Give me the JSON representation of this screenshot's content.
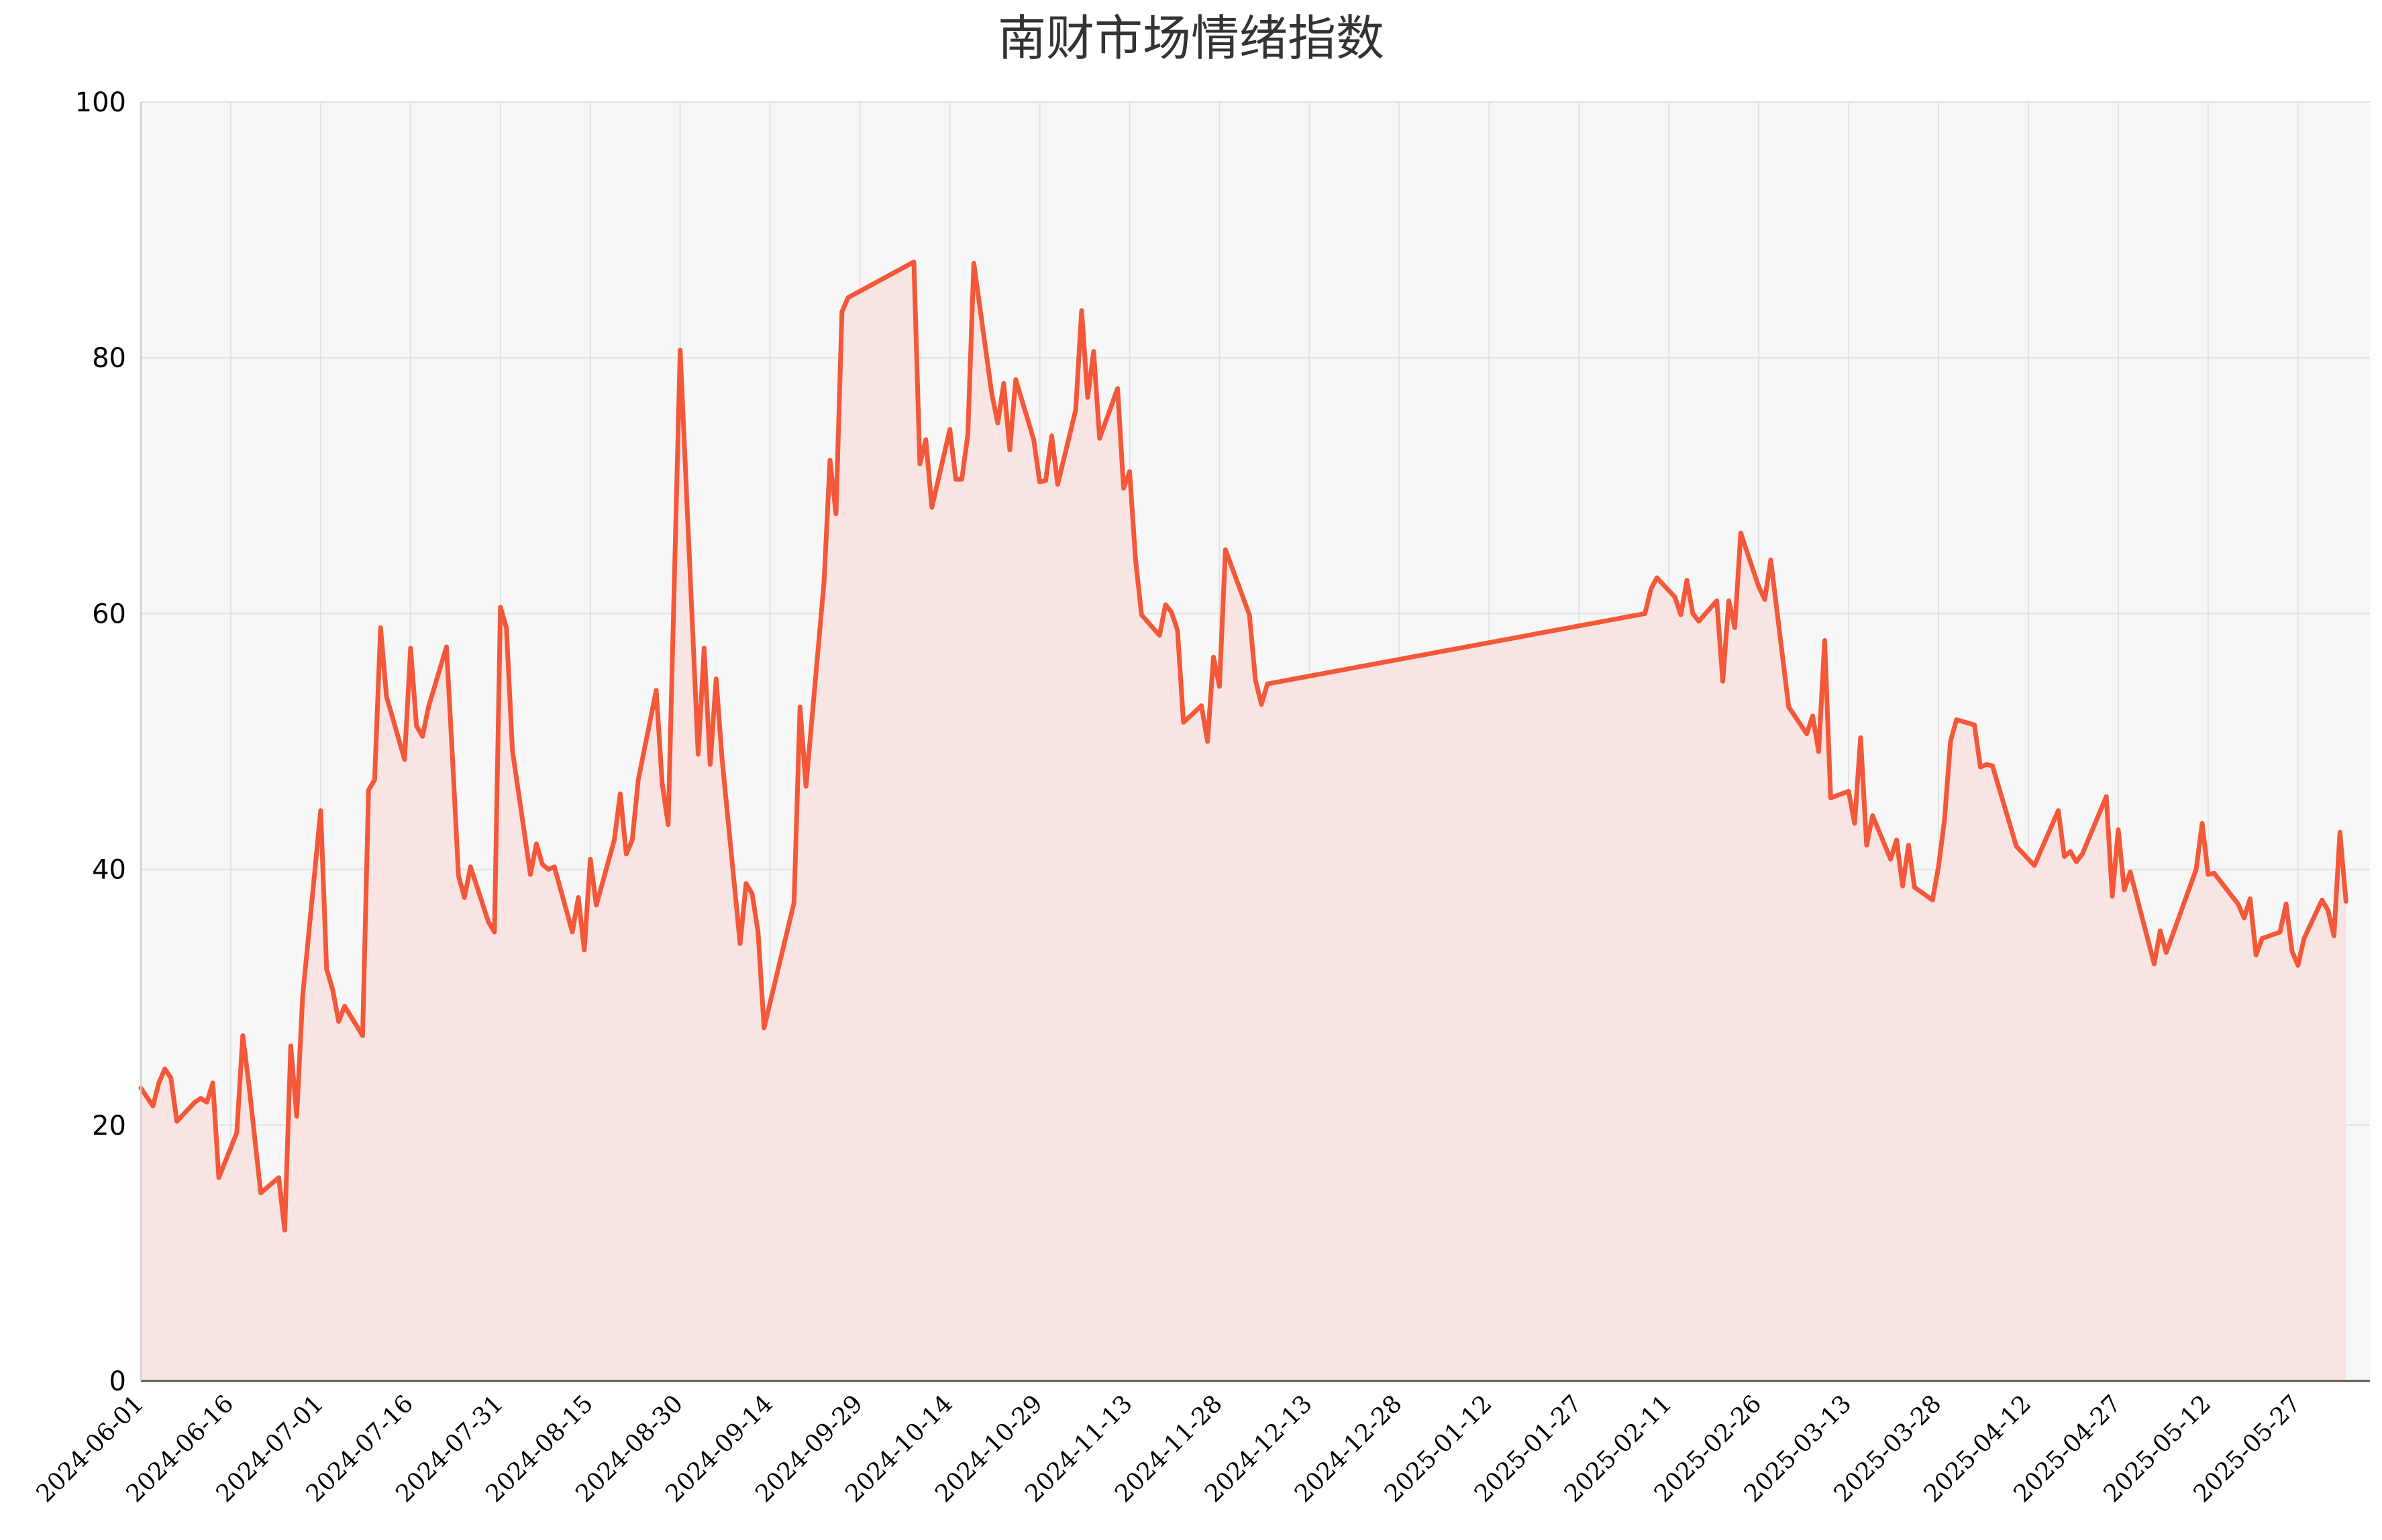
{
  "chart_data": {
    "type": "area",
    "title": "南财市场情绪指数",
    "xlabel": "",
    "ylabel": "",
    "ylim": [
      0,
      100
    ],
    "yticks": [
      "0",
      "20",
      "40",
      "60",
      "80",
      "100"
    ],
    "xlim": [
      "2024-06-01",
      "2025-06-08"
    ],
    "xticks": [
      "2024-06-01",
      "2024-06-16",
      "2024-07-01",
      "2024-07-16",
      "2024-07-31",
      "2024-08-15",
      "2024-08-30",
      "2024-09-14",
      "2024-09-29",
      "2024-10-14",
      "2024-10-29",
      "2024-11-13",
      "2024-11-28",
      "2024-12-13",
      "2024-12-28",
      "2025-01-12",
      "2025-01-27",
      "2025-02-11",
      "2025-02-26",
      "2025-03-13",
      "2025-03-28",
      "2025-04-12",
      "2025-04-27",
      "2025-05-12",
      "2025-05-27"
    ],
    "grid": true,
    "colors": {
      "line": "#f4583a",
      "fill": "#f8e4e2",
      "plot_bg": "#f7f7f7",
      "grid": "#e2e2e2"
    },
    "series": [
      {
        "points": [
          [
            "2024-06-01",
            22.9
          ],
          [
            "2024-06-02",
            22.2
          ],
          [
            "2024-06-03",
            21.5
          ],
          [
            "2024-06-04",
            23.3
          ],
          [
            "2024-06-05",
            24.4
          ],
          [
            "2024-06-06",
            23.7
          ],
          [
            "2024-06-07",
            20.3
          ],
          [
            "2024-06-10",
            21.8
          ],
          [
            "2024-06-11",
            22.1
          ],
          [
            "2024-06-12",
            21.8
          ],
          [
            "2024-06-13",
            23.3
          ],
          [
            "2024-06-14",
            15.9
          ],
          [
            "2024-06-17",
            19.4
          ],
          [
            "2024-06-18",
            27.0
          ],
          [
            "2024-06-19",
            23.3
          ],
          [
            "2024-06-21",
            14.7
          ],
          [
            "2024-06-24",
            15.9
          ],
          [
            "2024-06-25",
            11.8
          ],
          [
            "2024-06-26",
            26.2
          ],
          [
            "2024-06-27",
            20.7
          ],
          [
            "2024-06-28",
            30.1
          ],
          [
            "2024-07-01",
            44.6
          ],
          [
            "2024-07-02",
            32.2
          ],
          [
            "2024-07-03",
            30.6
          ],
          [
            "2024-07-04",
            28.1
          ],
          [
            "2024-07-05",
            29.3
          ],
          [
            "2024-07-08",
            27.0
          ],
          [
            "2024-07-09",
            46.2
          ],
          [
            "2024-07-10",
            47.0
          ],
          [
            "2024-07-11",
            58.9
          ],
          [
            "2024-07-12",
            53.5
          ],
          [
            "2024-07-15",
            48.6
          ],
          [
            "2024-07-16",
            57.3
          ],
          [
            "2024-07-17",
            51.2
          ],
          [
            "2024-07-18",
            50.4
          ],
          [
            "2024-07-19",
            52.7
          ],
          [
            "2024-07-22",
            57.4
          ],
          [
            "2024-07-23",
            48.7
          ],
          [
            "2024-07-24",
            39.5
          ],
          [
            "2024-07-25",
            37.8
          ],
          [
            "2024-07-26",
            40.2
          ],
          [
            "2024-07-29",
            35.9
          ],
          [
            "2024-07-30",
            35.1
          ],
          [
            "2024-07-31",
            60.5
          ],
          [
            "2024-08-01",
            58.9
          ],
          [
            "2024-08-02",
            49.3
          ],
          [
            "2024-08-05",
            39.6
          ],
          [
            "2024-08-06",
            42.0
          ],
          [
            "2024-08-07",
            40.4
          ],
          [
            "2024-08-08",
            40.0
          ],
          [
            "2024-08-09",
            40.2
          ],
          [
            "2024-08-12",
            35.1
          ],
          [
            "2024-08-13",
            37.8
          ],
          [
            "2024-08-14",
            33.7
          ],
          [
            "2024-08-15",
            40.8
          ],
          [
            "2024-08-16",
            37.2
          ],
          [
            "2024-08-19",
            42.3
          ],
          [
            "2024-08-20",
            45.9
          ],
          [
            "2024-08-21",
            41.2
          ],
          [
            "2024-08-22",
            42.3
          ],
          [
            "2024-08-23",
            47.0
          ],
          [
            "2024-08-26",
            54.0
          ],
          [
            "2024-08-27",
            46.7
          ],
          [
            "2024-08-28",
            43.5
          ],
          [
            "2024-08-30",
            80.6
          ],
          [
            "2024-09-02",
            49.0
          ],
          [
            "2024-09-03",
            57.3
          ],
          [
            "2024-09-04",
            48.2
          ],
          [
            "2024-09-05",
            54.9
          ],
          [
            "2024-09-06",
            48.6
          ],
          [
            "2024-09-09",
            34.2
          ],
          [
            "2024-09-10",
            38.9
          ],
          [
            "2024-09-11",
            38.1
          ],
          [
            "2024-09-12",
            35.1
          ],
          [
            "2024-09-13",
            27.6
          ],
          [
            "2024-09-18",
            37.4
          ],
          [
            "2024-09-19",
            52.7
          ],
          [
            "2024-09-20",
            46.5
          ],
          [
            "2024-09-23",
            62.4
          ],
          [
            "2024-09-24",
            72.0
          ],
          [
            "2024-09-25",
            67.8
          ],
          [
            "2024-09-26",
            83.6
          ],
          [
            "2024-09-27",
            84.7
          ],
          [
            "2024-10-08",
            87.5
          ],
          [
            "2024-10-09",
            71.7
          ],
          [
            "2024-10-10",
            73.6
          ],
          [
            "2024-10-11",
            68.3
          ],
          [
            "2024-10-14",
            74.4
          ],
          [
            "2024-10-15",
            70.5
          ],
          [
            "2024-10-16",
            70.5
          ],
          [
            "2024-10-17",
            74.0
          ],
          [
            "2024-10-18",
            87.4
          ],
          [
            "2024-10-21",
            77.2
          ],
          [
            "2024-10-22",
            74.9
          ],
          [
            "2024-10-23",
            78.0
          ],
          [
            "2024-10-24",
            72.8
          ],
          [
            "2024-10-25",
            78.3
          ],
          [
            "2024-10-28",
            73.6
          ],
          [
            "2024-10-29",
            70.3
          ],
          [
            "2024-10-30",
            70.4
          ],
          [
            "2024-10-31",
            73.9
          ],
          [
            "2024-11-01",
            70.1
          ],
          [
            "2024-11-04",
            75.9
          ],
          [
            "2024-11-05",
            83.7
          ],
          [
            "2024-11-06",
            76.9
          ],
          [
            "2024-11-07",
            80.5
          ],
          [
            "2024-11-08",
            73.7
          ],
          [
            "2024-11-11",
            77.6
          ],
          [
            "2024-11-12",
            69.8
          ],
          [
            "2024-11-13",
            71.1
          ],
          [
            "2024-11-14",
            64.2
          ],
          [
            "2024-11-15",
            59.9
          ],
          [
            "2024-11-18",
            58.3
          ],
          [
            "2024-11-19",
            60.7
          ],
          [
            "2024-11-20",
            60.1
          ],
          [
            "2024-11-21",
            58.7
          ],
          [
            "2024-11-22",
            51.5
          ],
          [
            "2024-11-25",
            52.8
          ],
          [
            "2024-11-26",
            50.0
          ],
          [
            "2024-11-27",
            56.6
          ],
          [
            "2024-11-28",
            54.3
          ],
          [
            "2024-11-29",
            65.0
          ],
          [
            "2024-12-03",
            59.9
          ],
          [
            "2024-12-04",
            54.8
          ],
          [
            "2024-12-05",
            52.9
          ],
          [
            "2024-12-06",
            54.5
          ],
          [
            "2025-02-07",
            60.0
          ],
          [
            "2025-02-08",
            61.9
          ],
          [
            "2025-02-09",
            62.8
          ],
          [
            "2025-02-12",
            61.3
          ],
          [
            "2025-02-13",
            59.9
          ],
          [
            "2025-02-14",
            62.6
          ],
          [
            "2025-02-15",
            60.0
          ],
          [
            "2025-02-16",
            59.4
          ],
          [
            "2025-02-19",
            61.0
          ],
          [
            "2025-02-20",
            54.7
          ],
          [
            "2025-02-21",
            61.0
          ],
          [
            "2025-02-22",
            58.9
          ],
          [
            "2025-02-23",
            66.3
          ],
          [
            "2025-02-26",
            62.1
          ],
          [
            "2025-02-27",
            61.1
          ],
          [
            "2025-02-28",
            64.2
          ],
          [
            "2025-03-03",
            52.7
          ],
          [
            "2025-03-06",
            50.6
          ],
          [
            "2025-03-07",
            52.0
          ],
          [
            "2025-03-08",
            49.2
          ],
          [
            "2025-03-09",
            57.9
          ],
          [
            "2025-03-10",
            45.6
          ],
          [
            "2025-03-13",
            46.1
          ],
          [
            "2025-03-14",
            43.6
          ],
          [
            "2025-03-15",
            50.3
          ],
          [
            "2025-03-16",
            41.9
          ],
          [
            "2025-03-17",
            44.2
          ],
          [
            "2025-03-20",
            40.8
          ],
          [
            "2025-03-21",
            42.3
          ],
          [
            "2025-03-22",
            38.7
          ],
          [
            "2025-03-23",
            41.9
          ],
          [
            "2025-03-24",
            38.6
          ],
          [
            "2025-03-27",
            37.6
          ],
          [
            "2025-03-28",
            40.2
          ],
          [
            "2025-03-29",
            43.9
          ],
          [
            "2025-03-30",
            50.0
          ],
          [
            "2025-03-31",
            51.7
          ],
          [
            "2025-04-03",
            51.3
          ],
          [
            "2025-04-04",
            48.0
          ],
          [
            "2025-04-05",
            48.2
          ],
          [
            "2025-04-06",
            48.1
          ],
          [
            "2025-04-10",
            41.8
          ],
          [
            "2025-04-13",
            40.3
          ],
          [
            "2025-04-17",
            44.6
          ],
          [
            "2025-04-18",
            41.0
          ],
          [
            "2025-04-19",
            41.4
          ],
          [
            "2025-04-20",
            40.6
          ],
          [
            "2025-04-21",
            41.2
          ],
          [
            "2025-04-25",
            45.7
          ],
          [
            "2025-04-26",
            37.9
          ],
          [
            "2025-04-27",
            43.1
          ],
          [
            "2025-04-28",
            38.4
          ],
          [
            "2025-04-29",
            39.8
          ],
          [
            "2025-05-03",
            32.6
          ],
          [
            "2025-05-04",
            35.2
          ],
          [
            "2025-05-05",
            33.5
          ],
          [
            "2025-05-10",
            40.0
          ],
          [
            "2025-05-11",
            43.6
          ],
          [
            "2025-05-12",
            39.6
          ],
          [
            "2025-05-13",
            39.7
          ],
          [
            "2025-05-17",
            37.3
          ],
          [
            "2025-05-18",
            36.2
          ],
          [
            "2025-05-19",
            37.7
          ],
          [
            "2025-05-20",
            33.3
          ],
          [
            "2025-05-21",
            34.6
          ],
          [
            "2025-05-24",
            35.1
          ],
          [
            "2025-05-25",
            37.3
          ],
          [
            "2025-05-26",
            33.6
          ],
          [
            "2025-05-27",
            32.5
          ],
          [
            "2025-05-28",
            34.6
          ],
          [
            "2025-05-31",
            37.6
          ],
          [
            "2025-06-01",
            36.8
          ],
          [
            "2025-06-02",
            34.8
          ],
          [
            "2025-06-03",
            42.9
          ],
          [
            "2025-06-04",
            37.5
          ]
        ]
      }
    ]
  }
}
